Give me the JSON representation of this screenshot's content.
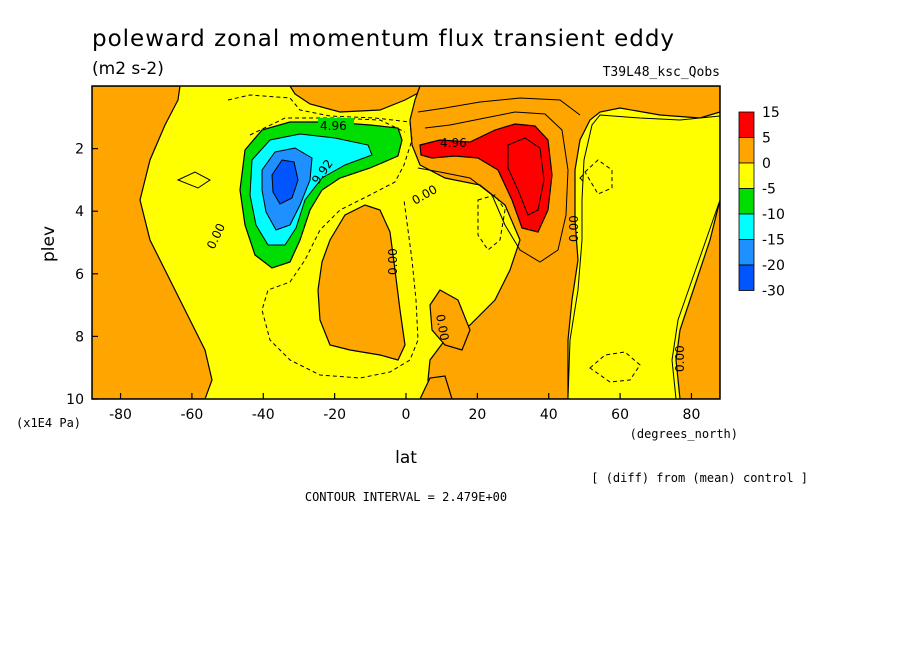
{
  "chart_data": {
    "type": "contour",
    "title": "poleward zonal momentum flux transient eddy",
    "units": "(m2 s-2)",
    "experiment": "T39L48_ksc_Qobs",
    "xlabel": "lat",
    "xunits": "(degrees_north)",
    "ylabel": "plev",
    "yunits": "(x1E4 Pa)",
    "xlim": [
      -88,
      88
    ],
    "ylim": [
      10,
      0
    ],
    "xticks": [
      "-80",
      "-60",
      "-40",
      "-20",
      "0",
      "20",
      "40",
      "60",
      "80"
    ],
    "xtick_values": [
      -80,
      -60,
      -40,
      -20,
      0,
      20,
      40,
      60,
      80
    ],
    "yticks": [
      "2",
      "4",
      "6",
      "8",
      "10"
    ],
    "ytick_values": [
      2,
      4,
      6,
      8,
      10
    ],
    "colorbar": {
      "labels": [
        "15",
        "5",
        "0",
        "-5",
        "-10",
        "-15",
        "-20",
        "-30"
      ],
      "colors": [
        "#ff0000",
        "#ffa500",
        "#ffff00",
        "#00dd00",
        "#00ffff",
        "#1e90ff",
        "#0055ff"
      ]
    },
    "contour_labels": [
      "4.96",
      "9.92",
      "0.00",
      "0.00",
      "4.96",
      "0.00",
      "0.00",
      "0.00",
      "0.00",
      "0.00"
    ],
    "features": [
      {
        "name": "negative-minimum",
        "lat": -35,
        "plev": 3.0,
        "range": "-20 to -30"
      },
      {
        "name": "positive-maximum",
        "lat": 32,
        "plev": 2.5,
        "range": "5 to 15"
      }
    ],
    "diff_note": "[ (diff) from (mean) control ]",
    "contour_interval": "CONTOUR INTERVAL = 2.479E+00"
  }
}
